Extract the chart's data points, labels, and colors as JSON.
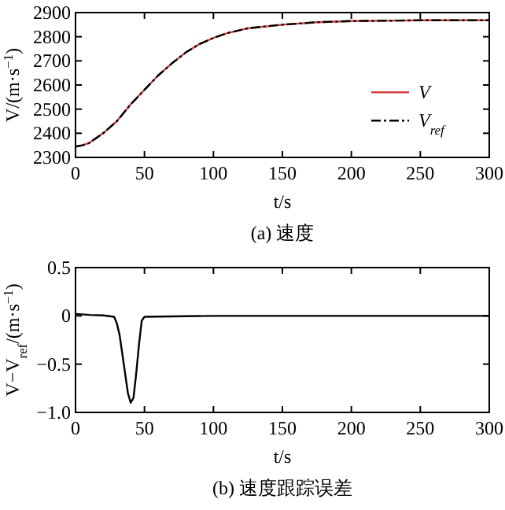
{
  "chart_data": [
    {
      "type": "line",
      "xlabel": "t/s",
      "ylabel": "V/(m·s$^{−1}$)",
      "annotations": [
        "(a) 速度"
      ],
      "xlim": [
        0,
        300
      ],
      "xticks": [
        0,
        50,
        100,
        150,
        200,
        250,
        300
      ],
      "ylim": [
        2300,
        2900
      ],
      "yticks": [
        2300,
        2400,
        2500,
        2600,
        2700,
        2800,
        2900
      ],
      "grid": false,
      "legend": "right",
      "series": [
        {
          "name": "V",
          "color": "#d04040",
          "line_style": "solid",
          "x": [
            0,
            5,
            10,
            20,
            30,
            40,
            50,
            60,
            70,
            80,
            90,
            100,
            110,
            125,
            150,
            175,
            200,
            250,
            300
          ],
          "values": [
            2345,
            2350,
            2360,
            2400,
            2450,
            2520,
            2580,
            2640,
            2690,
            2735,
            2770,
            2795,
            2815,
            2835,
            2850,
            2860,
            2865,
            2868,
            2868
          ]
        },
        {
          "name": "V$_{ref}$",
          "color": "#000000",
          "line_style": "dashed",
          "x": [
            0,
            5,
            10,
            20,
            30,
            40,
            50,
            60,
            70,
            80,
            90,
            100,
            110,
            125,
            150,
            175,
            200,
            250,
            300
          ],
          "values": [
            2345,
            2350,
            2360,
            2400,
            2450,
            2520,
            2580,
            2640,
            2690,
            2735,
            2770,
            2795,
            2815,
            2835,
            2850,
            2860,
            2865,
            2868,
            2868
          ]
        }
      ]
    },
    {
      "type": "line",
      "xlabel": "t/s",
      "ylabel": "V−V$_{ref}$/(m·s$^{−1}$)",
      "annotations": [
        "(b) 速度跟踪误差"
      ],
      "xlim": [
        0,
        300
      ],
      "xticks": [
        0,
        50,
        100,
        150,
        200,
        250,
        300
      ],
      "ylim": [
        -1,
        0.5
      ],
      "yticks": [
        {
          "value": -1,
          "label": "−1.0"
        },
        {
          "value": -0.5,
          "label": "−0.5"
        },
        0,
        0.5
      ],
      "grid": false,
      "series": [
        {
          "color": "#000000",
          "line_style": "solid",
          "x": [
            0,
            10,
            20,
            28,
            30,
            32,
            35,
            38,
            40,
            42,
            44,
            46,
            48,
            50,
            100,
            300
          ],
          "values": [
            0.02,
            0.01,
            0.005,
            -0.01,
            -0.08,
            -0.2,
            -0.5,
            -0.8,
            -0.9,
            -0.85,
            -0.6,
            -0.3,
            -0.05,
            -0.01,
            0,
            0
          ]
        }
      ]
    }
  ]
}
